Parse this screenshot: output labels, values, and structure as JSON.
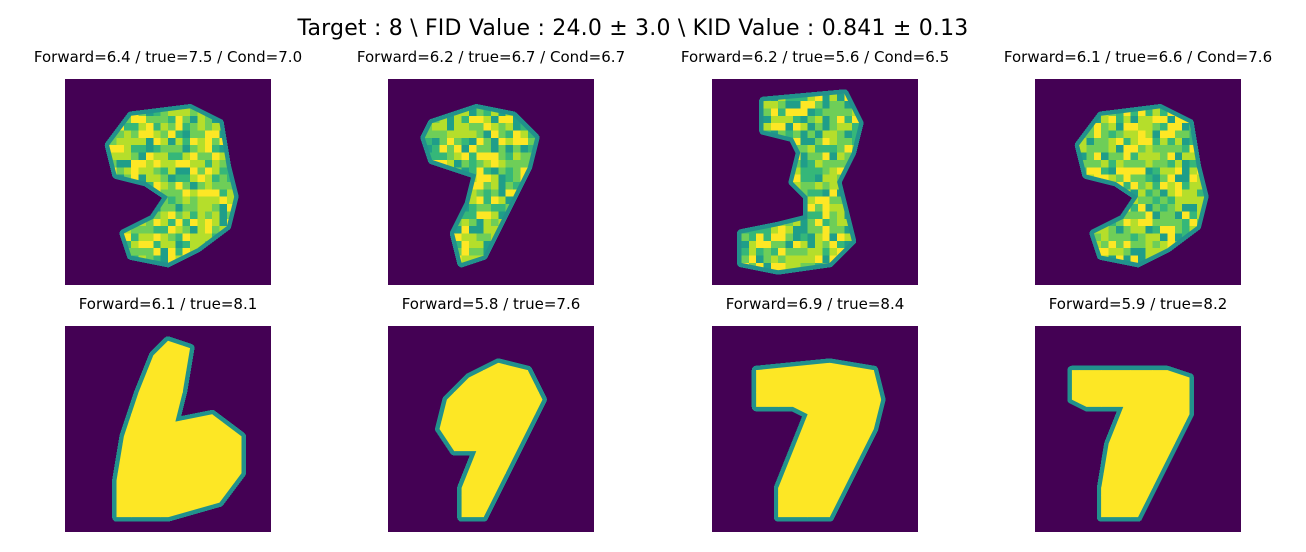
{
  "chart_data": {
    "type": "image-grid",
    "title": "Target : 8 \\ FID Value : 24.0 ± 3.0 \\ KID Value : 0.841  ± 0.13",
    "colormap": "viridis",
    "background_color": "#440154",
    "foreground_color": "#fde725",
    "rows": [
      {
        "panels": [
          {
            "title": "Forward=6.4 / true=7.5 / Cond=7.0",
            "depicts": "noisy 9"
          },
          {
            "title": "Forward=6.2 / true=6.7 / Cond=6.7",
            "depicts": "noisy 9"
          },
          {
            "title": "Forward=6.2 / true=5.6 / Cond=6.5",
            "depicts": "noisy 3"
          },
          {
            "title": "Forward=6.1 / true=6.6 / Cond=7.6",
            "depicts": "noisy 9"
          }
        ]
      },
      {
        "panels": [
          {
            "title": "Forward=6.1 / true=8.1",
            "depicts": "6"
          },
          {
            "title": "Forward=5.8 / true=7.6",
            "depicts": "9"
          },
          {
            "title": "Forward=6.9 / true=8.4",
            "depicts": "7"
          },
          {
            "title": "Forward=5.9 / true=8.2",
            "depicts": "7"
          }
        ]
      }
    ]
  }
}
